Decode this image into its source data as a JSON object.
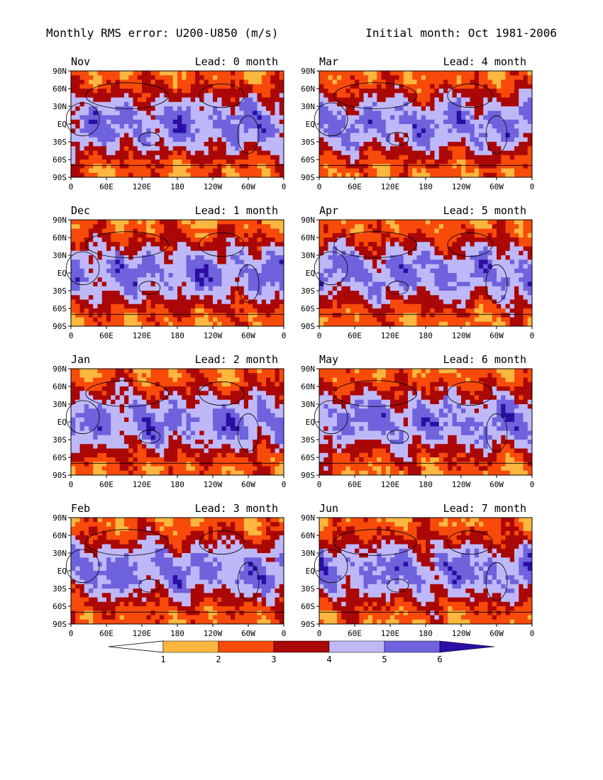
{
  "header": {
    "title": "Monthly RMS error: U200-U850 (m/s)",
    "initial_month": "Initial month: Oct 1981-2006"
  },
  "axes": {
    "lat_labels": [
      "90N",
      "60N",
      "30N",
      "EQ",
      "30S",
      "60S",
      "90S"
    ],
    "lon_labels": [
      "0",
      "60E",
      "120E",
      "180",
      "120W",
      "60W",
      "0"
    ]
  },
  "panels": [
    {
      "month": "Nov",
      "lead": "Lead: 0 month"
    },
    {
      "month": "Mar",
      "lead": "Lead: 4 month"
    },
    {
      "month": "Dec",
      "lead": "Lead: 1 month"
    },
    {
      "month": "Apr",
      "lead": "Lead: 5 month"
    },
    {
      "month": "Jan",
      "lead": "Lead: 2 month"
    },
    {
      "month": "May",
      "lead": "Lead: 6 month"
    },
    {
      "month": "Feb",
      "lead": "Lead: 3 month"
    },
    {
      "month": "Jun",
      "lead": "Lead: 7 month"
    }
  ],
  "colorbar": {
    "ticks": [
      "1",
      "2",
      "3",
      "4",
      "5",
      "6"
    ],
    "colors": [
      "#ffffff",
      "#fdb73f",
      "#f74a0b",
      "#aa0707",
      "#bfb8f8",
      "#6e62dd",
      "#2b0ea3"
    ]
  }
}
